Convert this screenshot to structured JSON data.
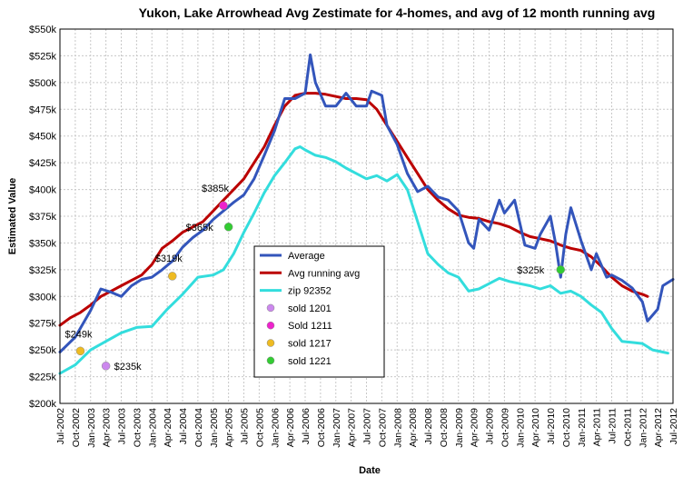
{
  "chart_data": {
    "type": "line",
    "title": "Yukon, Lake Arrowhead Avg Zestimate for 4-homes, and avg of 12 month running avg",
    "xlabel": "Date",
    "ylabel": "Estimated Value",
    "ylim": [
      200000,
      550000
    ],
    "yticks": [
      200000,
      225000,
      250000,
      275000,
      300000,
      325000,
      350000,
      375000,
      400000,
      425000,
      450000,
      475000,
      500000,
      525000,
      550000
    ],
    "ytick_labels": [
      "$200k",
      "$225k",
      "$250k",
      "$275k",
      "$300k",
      "$325k",
      "$350k",
      "$375k",
      "$400k",
      "$425k",
      "$450k",
      "$475k",
      "$500k",
      "$525k",
      "$550k"
    ],
    "xlim": [
      "2002-07",
      "2012-07"
    ],
    "xtick_labels": [
      "Jul-2002",
      "Oct-2002",
      "Jan-2003",
      "Apr-2003",
      "Jul-2003",
      "Oct-2003",
      "Jan-2004",
      "Apr-2004",
      "Jul-2004",
      "Oct-2004",
      "Jan-2005",
      "Apr-2005",
      "Jul-2005",
      "Oct-2005",
      "Jan-2006",
      "Apr-2006",
      "Jul-2006",
      "Oct-2006",
      "Jan-2007",
      "Apr-2007",
      "Jul-2007",
      "Oct-2007",
      "Jan-2008",
      "Apr-2008",
      "Jul-2008",
      "Oct-2008",
      "Jan-2009",
      "Apr-2009",
      "Jul-2009",
      "Oct-2009",
      "Jan-2010",
      "Apr-2010",
      "Jul-2010",
      "Oct-2010",
      "Jan-2011",
      "Apr-2011",
      "Jul-2011",
      "Oct-2011",
      "Jan-2012",
      "Apr-2012",
      "Jul-2012"
    ],
    "grid": true,
    "legend_position": "center",
    "series": [
      {
        "name": "Average",
        "color": "#3355bb",
        "points": [
          [
            "2002-07",
            248000
          ],
          [
            "2002-10",
            262000
          ],
          [
            "2003-01",
            287000
          ],
          [
            "2003-03",
            307000
          ],
          [
            "2003-05",
            304000
          ],
          [
            "2003-07",
            300000
          ],
          [
            "2003-09",
            310000
          ],
          [
            "2003-11",
            316000
          ],
          [
            "2004-01",
            318000
          ],
          [
            "2004-03",
            325000
          ],
          [
            "2004-05",
            333000
          ],
          [
            "2004-07",
            346000
          ],
          [
            "2004-09",
            355000
          ],
          [
            "2004-11",
            362000
          ],
          [
            "2005-01",
            372000
          ],
          [
            "2005-03",
            380000
          ],
          [
            "2005-05",
            388000
          ],
          [
            "2005-07",
            395000
          ],
          [
            "2005-09",
            410000
          ],
          [
            "2005-11",
            432000
          ],
          [
            "2006-01",
            455000
          ],
          [
            "2006-03",
            485000
          ],
          [
            "2006-05",
            485000
          ],
          [
            "2006-07",
            490000
          ],
          [
            "2006-08",
            526000
          ],
          [
            "2006-09",
            500000
          ],
          [
            "2006-11",
            478000
          ],
          [
            "2007-01",
            478000
          ],
          [
            "2007-03",
            490000
          ],
          [
            "2007-05",
            478000
          ],
          [
            "2007-07",
            478000
          ],
          [
            "2007-08",
            492000
          ],
          [
            "2007-10",
            488000
          ],
          [
            "2007-11",
            460000
          ],
          [
            "2008-01",
            442000
          ],
          [
            "2008-03",
            415000
          ],
          [
            "2008-05",
            398000
          ],
          [
            "2008-07",
            403000
          ],
          [
            "2008-09",
            393000
          ],
          [
            "2008-11",
            390000
          ],
          [
            "2009-01",
            380000
          ],
          [
            "2009-03",
            350000
          ],
          [
            "2009-04",
            345000
          ],
          [
            "2009-05",
            372000
          ],
          [
            "2009-07",
            362000
          ],
          [
            "2009-09",
            390000
          ],
          [
            "2009-10",
            378000
          ],
          [
            "2009-12",
            390000
          ],
          [
            "2010-02",
            348000
          ],
          [
            "2010-04",
            345000
          ],
          [
            "2010-05",
            358000
          ],
          [
            "2010-07",
            375000
          ],
          [
            "2010-08",
            350000
          ],
          [
            "2010-09",
            318000
          ],
          [
            "2010-10",
            358000
          ],
          [
            "2010-11",
            383000
          ],
          [
            "2011-01",
            352000
          ],
          [
            "2011-03",
            325000
          ],
          [
            "2011-04",
            340000
          ],
          [
            "2011-06",
            318000
          ],
          [
            "2011-07",
            320000
          ],
          [
            "2011-09",
            315000
          ],
          [
            "2011-11",
            308000
          ],
          [
            "2012-01",
            295000
          ],
          [
            "2012-02",
            277000
          ],
          [
            "2012-04",
            288000
          ],
          [
            "2012-05",
            310000
          ],
          [
            "2012-07",
            316000
          ]
        ]
      },
      {
        "name": "Avg running avg",
        "color": "#bb0000",
        "points": [
          [
            "2002-07",
            273000
          ],
          [
            "2002-09",
            280000
          ],
          [
            "2002-11",
            285000
          ],
          [
            "2003-01",
            292000
          ],
          [
            "2003-03",
            300000
          ],
          [
            "2003-05",
            305000
          ],
          [
            "2003-07",
            310000
          ],
          [
            "2003-09",
            315000
          ],
          [
            "2003-11",
            320000
          ],
          [
            "2004-01",
            330000
          ],
          [
            "2004-03",
            345000
          ],
          [
            "2004-05",
            352000
          ],
          [
            "2004-07",
            360000
          ],
          [
            "2004-09",
            365000
          ],
          [
            "2004-11",
            370000
          ],
          [
            "2005-01",
            380000
          ],
          [
            "2005-03",
            390000
          ],
          [
            "2005-05",
            400000
          ],
          [
            "2005-07",
            410000
          ],
          [
            "2005-09",
            425000
          ],
          [
            "2005-11",
            440000
          ],
          [
            "2006-01",
            460000
          ],
          [
            "2006-03",
            478000
          ],
          [
            "2006-05",
            488000
          ],
          [
            "2006-07",
            490000
          ],
          [
            "2006-09",
            490000
          ],
          [
            "2006-11",
            489000
          ],
          [
            "2007-01",
            487000
          ],
          [
            "2007-03",
            485000
          ],
          [
            "2007-05",
            485000
          ],
          [
            "2007-07",
            484000
          ],
          [
            "2007-09",
            475000
          ],
          [
            "2007-11",
            460000
          ],
          [
            "2008-01",
            445000
          ],
          [
            "2008-03",
            430000
          ],
          [
            "2008-05",
            415000
          ],
          [
            "2008-07",
            400000
          ],
          [
            "2008-09",
            390000
          ],
          [
            "2008-11",
            382000
          ],
          [
            "2009-01",
            376000
          ],
          [
            "2009-03",
            374000
          ],
          [
            "2009-05",
            373000
          ],
          [
            "2009-07",
            370000
          ],
          [
            "2009-09",
            368000
          ],
          [
            "2009-11",
            365000
          ],
          [
            "2010-01",
            360000
          ],
          [
            "2010-03",
            356000
          ],
          [
            "2010-05",
            354000
          ],
          [
            "2010-07",
            352000
          ],
          [
            "2010-09",
            348000
          ],
          [
            "2010-11",
            345000
          ],
          [
            "2011-01",
            343000
          ],
          [
            "2011-03",
            337000
          ],
          [
            "2011-05",
            328000
          ],
          [
            "2011-07",
            318000
          ],
          [
            "2011-09",
            310000
          ],
          [
            "2011-11",
            305000
          ],
          [
            "2012-01",
            302000
          ],
          [
            "2012-02",
            300000
          ]
        ]
      },
      {
        "name": "zip 92352",
        "color": "#33dddd",
        "points": [
          [
            "2002-07",
            228000
          ],
          [
            "2002-10",
            236000
          ],
          [
            "2003-01",
            250000
          ],
          [
            "2003-04",
            258000
          ],
          [
            "2003-07",
            266000
          ],
          [
            "2003-10",
            271000
          ],
          [
            "2004-01",
            272000
          ],
          [
            "2004-04",
            288000
          ],
          [
            "2004-07",
            302000
          ],
          [
            "2004-10",
            318000
          ],
          [
            "2005-01",
            320000
          ],
          [
            "2005-03",
            325000
          ],
          [
            "2005-05",
            340000
          ],
          [
            "2005-07",
            360000
          ],
          [
            "2005-09",
            378000
          ],
          [
            "2005-11",
            397000
          ],
          [
            "2006-01",
            413000
          ],
          [
            "2006-03",
            425000
          ],
          [
            "2006-05",
            438000
          ],
          [
            "2006-06",
            440000
          ],
          [
            "2006-07",
            437000
          ],
          [
            "2006-09",
            432000
          ],
          [
            "2006-11",
            430000
          ],
          [
            "2007-01",
            426000
          ],
          [
            "2007-03",
            420000
          ],
          [
            "2007-05",
            415000
          ],
          [
            "2007-07",
            410000
          ],
          [
            "2007-09",
            413000
          ],
          [
            "2007-11",
            408000
          ],
          [
            "2008-01",
            414000
          ],
          [
            "2008-03",
            400000
          ],
          [
            "2008-05",
            370000
          ],
          [
            "2008-07",
            340000
          ],
          [
            "2008-09",
            330000
          ],
          [
            "2008-11",
            322000
          ],
          [
            "2009-01",
            318000
          ],
          [
            "2009-03",
            305000
          ],
          [
            "2009-05",
            307000
          ],
          [
            "2009-07",
            312000
          ],
          [
            "2009-09",
            317000
          ],
          [
            "2009-11",
            314000
          ],
          [
            "2010-01",
            312000
          ],
          [
            "2010-03",
            310000
          ],
          [
            "2010-05",
            307000
          ],
          [
            "2010-07",
            310000
          ],
          [
            "2010-09",
            303000
          ],
          [
            "2010-11",
            305000
          ],
          [
            "2011-01",
            300000
          ],
          [
            "2011-03",
            292000
          ],
          [
            "2011-05",
            285000
          ],
          [
            "2011-07",
            270000
          ],
          [
            "2011-09",
            258000
          ],
          [
            "2011-11",
            257000
          ],
          [
            "2012-01",
            256000
          ],
          [
            "2012-03",
            250000
          ],
          [
            "2012-05",
            248000
          ],
          [
            "2012-06",
            247000
          ]
        ]
      }
    ],
    "markers": [
      {
        "name": "sold 1201",
        "color": "#cc88ee",
        "x": "2003-04",
        "y": 235000,
        "label": "$235k"
      },
      {
        "name": "Sold 1211",
        "color": "#ee22cc",
        "x": "2005-03",
        "y": 385000,
        "label": "$385k"
      },
      {
        "name": "sold 1217",
        "color": "#eebb22",
        "x": "2002-11",
        "y": 249000,
        "label": "$249k"
      },
      {
        "name": "sold 1217",
        "color": "#eebb22",
        "x": "2004-05",
        "y": 319000,
        "label": "$319k"
      },
      {
        "name": "sold 1221",
        "color": "#33cc33",
        "x": "2005-04",
        "y": 365000,
        "label": "$365k"
      },
      {
        "name": "sold 1221",
        "color": "#33cc33",
        "x": "2010-09",
        "y": 325000,
        "label": "$325k"
      }
    ],
    "legend": [
      {
        "label": "Average",
        "kind": "line",
        "color": "#3355bb"
      },
      {
        "label": "Avg running avg",
        "kind": "line",
        "color": "#bb0000"
      },
      {
        "label": "zip 92352",
        "kind": "line",
        "color": "#33dddd"
      },
      {
        "label": "sold 1201",
        "kind": "dot",
        "color": "#cc88ee"
      },
      {
        "label": "Sold 1211",
        "kind": "dot",
        "color": "#ee22cc"
      },
      {
        "label": "sold 1217",
        "kind": "dot",
        "color": "#eebb22"
      },
      {
        "label": "sold 1221",
        "kind": "dot",
        "color": "#33cc33"
      }
    ]
  }
}
